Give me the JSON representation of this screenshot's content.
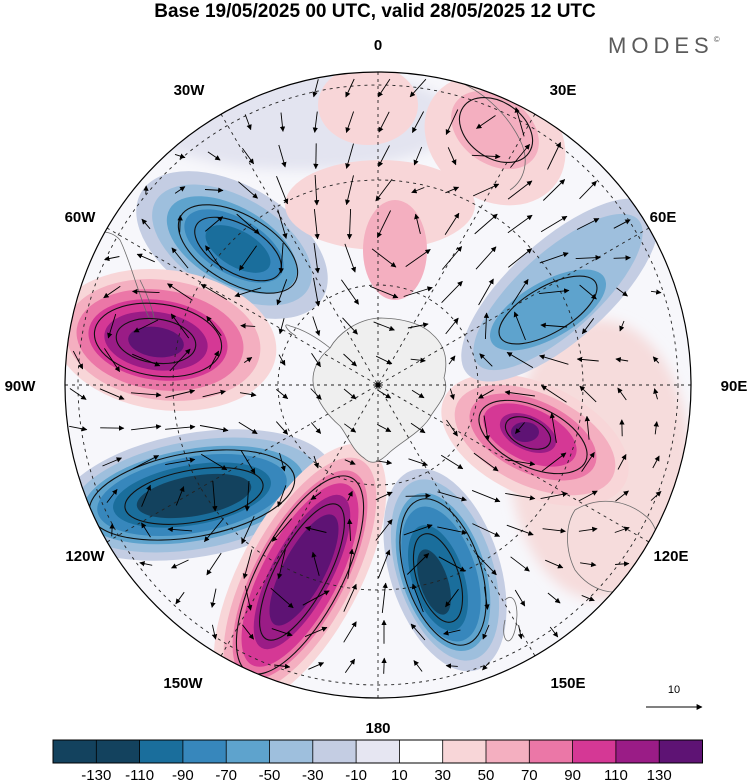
{
  "title": "Base 19/05/2025 00 UTC, valid 28/05/2025 12 UTC",
  "brand": "MODES",
  "brand_mark": "©",
  "map": {
    "projection": "south-polar-stereographic",
    "longitude_labels": {
      "top": "0",
      "upper_right": "30E",
      "right_upper": "60E",
      "right": "90E",
      "right_lower": "120E",
      "lower_right": "150E",
      "bottom": "180",
      "lower_left": "150W",
      "left_lower": "120W",
      "left": "90W",
      "left_upper": "60W",
      "upper_left": "30W"
    },
    "wind_reference_label": "10",
    "anomaly_centers": [
      {
        "lon": "45W",
        "sign": "negative",
        "strength": 110
      },
      {
        "lon": "75W",
        "sign": "positive",
        "strength": 130
      },
      {
        "lon": "115W",
        "sign": "negative",
        "strength": 130
      },
      {
        "lon": "150W",
        "sign": "positive",
        "strength": 130
      },
      {
        "lon": "160E",
        "sign": "negative",
        "strength": 130
      },
      {
        "lon": "100E",
        "sign": "positive",
        "strength": 130
      },
      {
        "lon": "65E",
        "sign": "negative",
        "strength": 70
      },
      {
        "lon": "25E",
        "sign": "positive",
        "strength": 40
      },
      {
        "lon": "5E",
        "sign": "positive",
        "strength": 50
      }
    ]
  },
  "colorbar": {
    "tick_labels": [
      "-130",
      "-110",
      "-90",
      "-70",
      "-50",
      "-30",
      "-10",
      "10",
      "30",
      "50",
      "70",
      "90",
      "110",
      "130"
    ],
    "colors": [
      "#13425e",
      "#1a6e9c",
      "#3787bc",
      "#5ea3cd",
      "#9ebfdd",
      "#c4cde3",
      "#e6e6f2",
      "#ffffff",
      "#f8d6d8",
      "#f4afc0",
      "#eb77a7",
      "#d53895",
      "#9a1c86",
      "#5e1374"
    ]
  }
}
